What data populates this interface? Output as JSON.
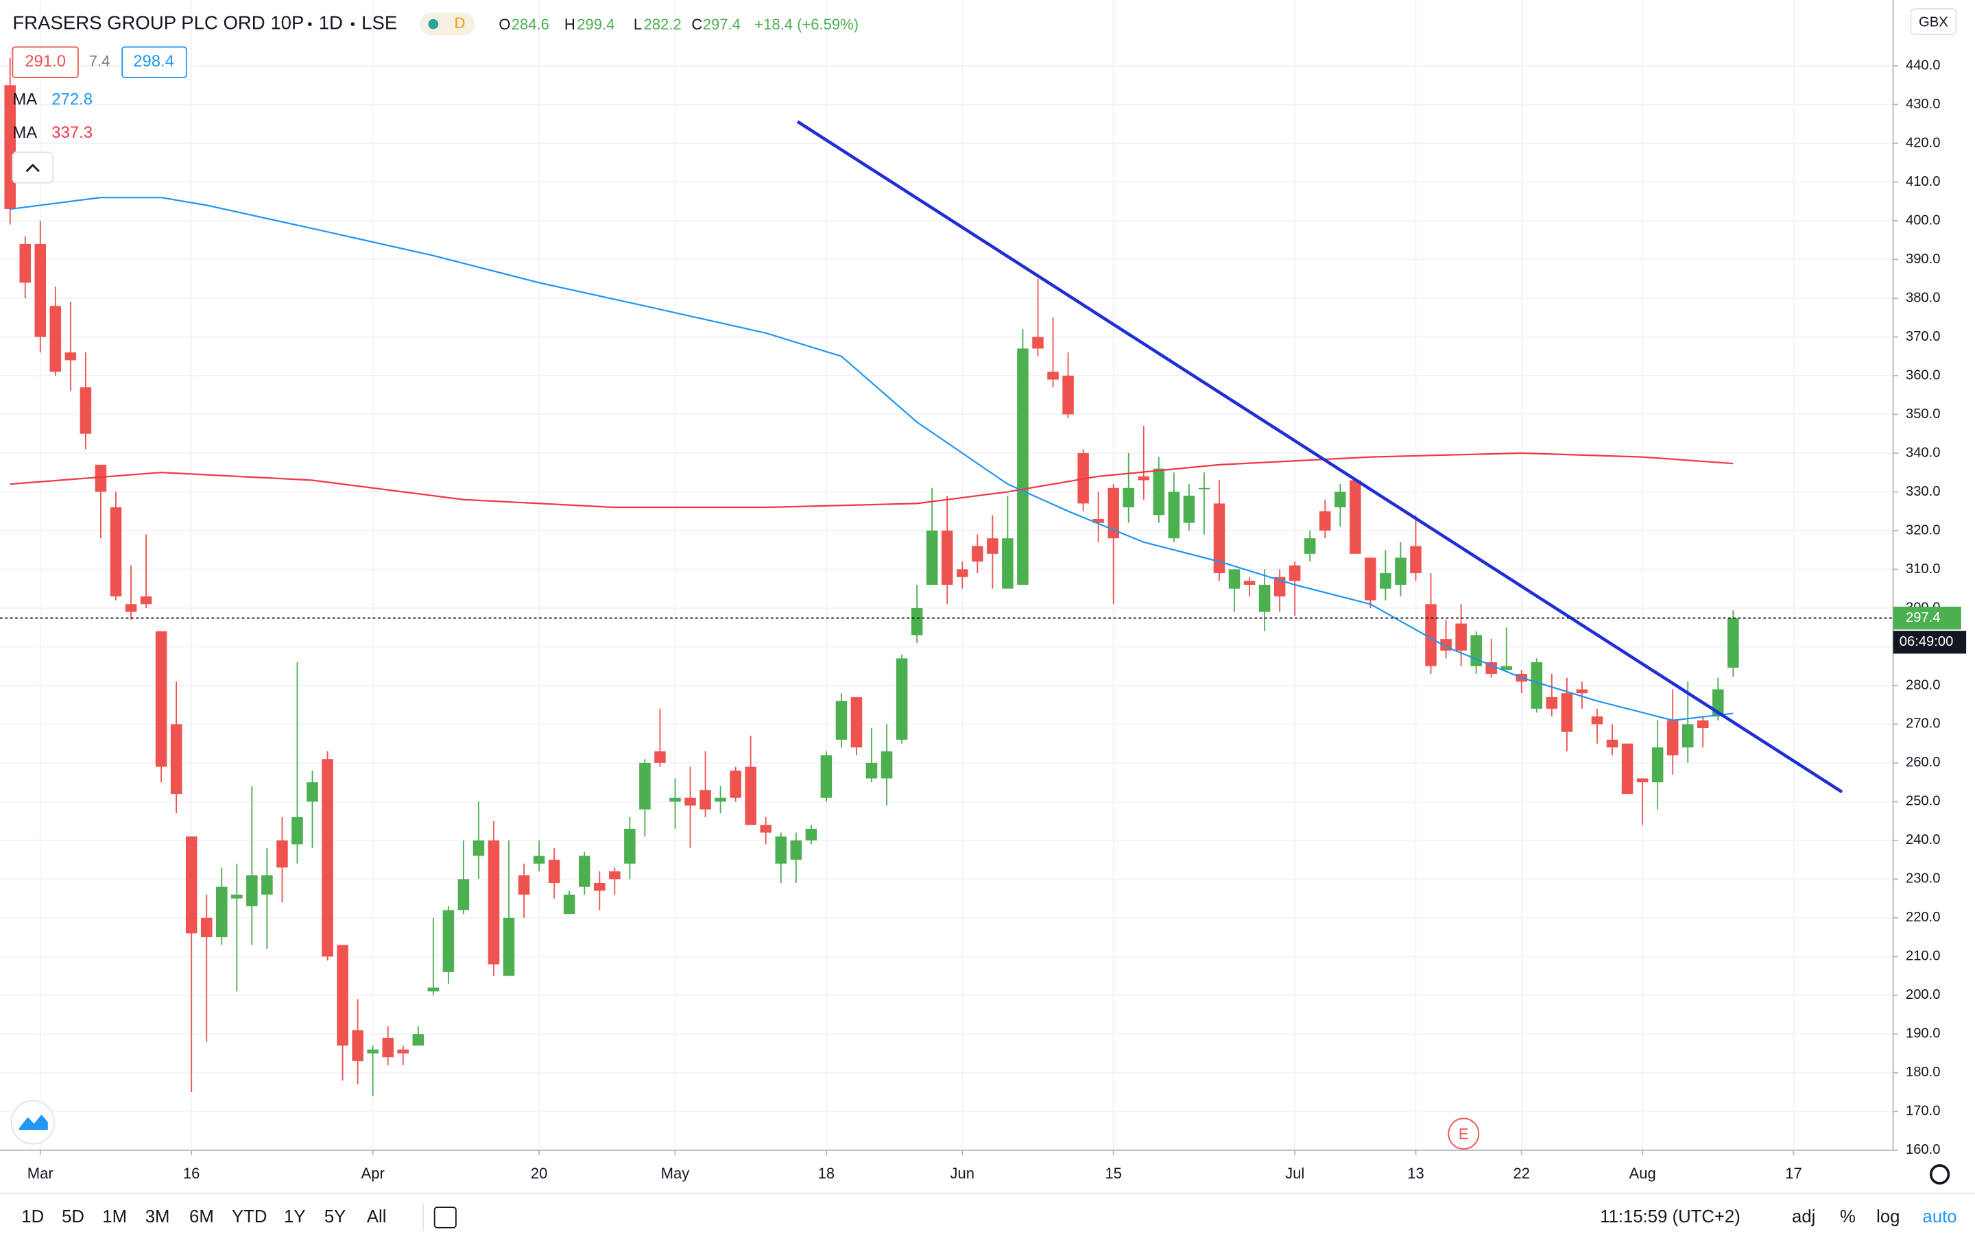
{
  "header": {
    "symbol": "FRASERS GROUP PLC ORD 10P",
    "interval": "1D",
    "exchange": "LSE",
    "badge": "D",
    "ohlc_labels": [
      "O",
      "H",
      "L",
      "C"
    ],
    "change": "+18.4 (+6.59%)"
  },
  "order_panel": {
    "sell": "291.0",
    "spread": "7.4",
    "buy": "298.4"
  },
  "axis_currency": "GBX",
  "countdown": "06:49:00",
  "event_marker": "E",
  "toolbar": {
    "ranges": [
      "1D",
      "5D",
      "1M",
      "3M",
      "6M",
      "YTD",
      "1Y",
      "5Y",
      "All"
    ],
    "time": "11:15:59 (UTC+2)",
    "options": [
      "adj",
      "%",
      "log",
      "auto"
    ]
  },
  "chart_data": {
    "type": "candlestick",
    "up_color": "#4caf50",
    "down_color": "#ef5350",
    "open": [
      435,
      394,
      394,
      378,
      366,
      357,
      337,
      326,
      301,
      303,
      294,
      270,
      241,
      220,
      215,
      225,
      223,
      226,
      240,
      239,
      250,
      261,
      213,
      191,
      185,
      189,
      186,
      187,
      201,
      206,
      222,
      236,
      240,
      205,
      231,
      234,
      235,
      221,
      228,
      229,
      232,
      234,
      248,
      263,
      250,
      251,
      253,
      250,
      258,
      259,
      244,
      234,
      235,
      240,
      251,
      266,
      277,
      256,
      256,
      266,
      293,
      306,
      320,
      310,
      316,
      318,
      305,
      306,
      370,
      361,
      360,
      340,
      323,
      331,
      326,
      334,
      324,
      318,
      322,
      331,
      327,
      305,
      307,
      299,
      308,
      311,
      314,
      325,
      326,
      333,
      313,
      305,
      306,
      316,
      301,
      292,
      296,
      285,
      286,
      284,
      283,
      274,
      277,
      278,
      279,
      272,
      266,
      265,
      256,
      255,
      271,
      264,
      271,
      272,
      284.6
    ],
    "high": [
      442,
      396,
      400,
      383,
      379,
      366,
      337,
      330,
      311,
      319,
      294,
      281,
      241,
      226,
      233,
      234,
      254,
      238,
      246,
      286,
      258,
      263,
      213,
      199,
      187,
      192,
      187,
      192,
      220,
      223,
      240,
      250,
      245,
      240,
      234,
      240,
      238,
      227,
      237,
      232,
      233,
      246,
      261,
      274,
      256,
      259,
      263,
      254,
      259,
      267,
      246,
      242,
      242,
      244,
      263,
      278,
      277,
      269,
      270,
      288,
      306,
      331,
      329,
      312,
      319,
      324,
      329,
      372,
      385,
      375,
      366,
      341,
      330,
      332,
      340,
      347,
      339,
      335,
      332,
      335,
      333,
      310,
      308,
      310,
      310,
      312,
      320,
      328,
      332,
      333,
      313,
      315,
      317,
      324,
      309,
      297,
      301,
      294,
      292,
      295,
      284,
      287,
      283,
      282,
      281,
      274,
      270,
      265,
      256,
      271,
      279,
      281,
      272,
      282,
      299.4
    ],
    "low": [
      399,
      380,
      366,
      360,
      356,
      341,
      318,
      302,
      297,
      300,
      255,
      247,
      175,
      188,
      213,
      201,
      213,
      212,
      224,
      234,
      238,
      209,
      178,
      177,
      174,
      182,
      182,
      187,
      200,
      203,
      221,
      230,
      205,
      205,
      220,
      232,
      225,
      221,
      226,
      222,
      226,
      230,
      241,
      259,
      243,
      238,
      246,
      247,
      250,
      244,
      239,
      229,
      229,
      239,
      250,
      264,
      262,
      255,
      249,
      265,
      291,
      306,
      301,
      305,
      309,
      305,
      305,
      306,
      365,
      357,
      349,
      325,
      317,
      301,
      322,
      328,
      322,
      317,
      320,
      319,
      307,
      299,
      303,
      294,
      299,
      298,
      312,
      318,
      321,
      314,
      300,
      302,
      303,
      307,
      283,
      287,
      285,
      283,
      282,
      284,
      278,
      273,
      272,
      263,
      274,
      265,
      262,
      252,
      244,
      248,
      257,
      260,
      264,
      271,
      282.2
    ],
    "close": [
      403,
      384,
      370,
      361,
      364,
      345,
      330,
      303,
      299,
      301,
      259,
      252,
      216,
      215,
      228,
      226,
      231,
      231,
      233,
      246,
      255,
      210,
      187,
      183,
      186,
      184,
      185,
      190,
      202,
      222,
      230,
      240,
      208,
      220,
      226,
      236,
      229,
      226,
      236,
      227,
      230,
      243,
      260,
      260,
      251,
      249,
      248,
      251,
      251,
      244,
      242,
      241,
      240,
      243,
      262,
      276,
      264,
      260,
      263,
      287,
      300,
      320,
      306,
      308,
      312,
      314,
      318,
      367,
      367,
      359,
      350,
      327,
      322,
      318,
      331,
      333,
      336,
      330,
      329,
      331,
      309,
      310,
      306,
      306,
      303,
      307,
      318,
      320,
      330,
      314,
      302,
      309,
      313,
      309,
      285,
      289,
      289,
      293,
      283,
      285,
      281,
      286,
      274,
      268,
      278,
      270,
      264,
      252,
      255,
      264,
      262,
      270,
      269,
      279,
      297.4
    ],
    "lines": [
      {
        "name": "MA",
        "color": "#2196f3",
        "x": [
          0,
          6,
          10,
          13,
          20,
          28,
          35,
          42,
          50,
          55,
          60,
          66,
          70,
          75,
          80,
          85,
          90,
          95,
          100,
          105,
          110,
          114
        ],
        "values": [
          403,
          406,
          406,
          404,
          398,
          391,
          384,
          378,
          371,
          365,
          348,
          332,
          325,
          317,
          312,
          306,
          301,
          290,
          282,
          276,
          271,
          272.8
        ]
      },
      {
        "name": "MA",
        "color": "#f23645",
        "x": [
          0,
          10,
          20,
          30,
          40,
          50,
          60,
          66,
          72,
          80,
          90,
          100,
          108,
          114
        ],
        "values": [
          332,
          335,
          333,
          328,
          326,
          326,
          327,
          330,
          334,
          337,
          339,
          340,
          339,
          337.3
        ]
      }
    ],
    "trendline": {
      "color": "#1e2fd6",
      "x": [
        52.1,
        121.2
      ],
      "values": [
        425.6,
        252.5
      ]
    },
    "xlim": [
      -0.667,
      124.583
    ],
    "ylim": [
      160,
      457
    ],
    "xticks": [
      {
        "value": 2,
        "label": "Mar"
      },
      {
        "value": 12,
        "label": "16"
      },
      {
        "value": 24,
        "label": "Apr"
      },
      {
        "value": 35,
        "label": "20"
      },
      {
        "value": 44,
        "label": "May"
      },
      {
        "value": 54,
        "label": "18"
      },
      {
        "value": 63,
        "label": "Jun"
      },
      {
        "value": 73,
        "label": "15"
      },
      {
        "value": 85,
        "label": "Jul"
      },
      {
        "value": 93,
        "label": "13"
      },
      {
        "value": 100,
        "label": "22"
      },
      {
        "value": 108,
        "label": "Aug"
      },
      {
        "value": 118,
        "label": "17"
      }
    ],
    "yticks": [
      {
        "value": 160,
        "label": "160.0"
      },
      {
        "value": 170,
        "label": "170.0"
      },
      {
        "value": 180,
        "label": "180.0"
      },
      {
        "value": 190,
        "label": "190.0"
      },
      {
        "value": 200,
        "label": "200.0"
      },
      {
        "value": 210,
        "label": "210.0"
      },
      {
        "value": 220,
        "label": "220.0"
      },
      {
        "value": 230,
        "label": "230.0"
      },
      {
        "value": 240,
        "label": "240.0"
      },
      {
        "value": 250,
        "label": "250.0"
      },
      {
        "value": 260,
        "label": "260.0"
      },
      {
        "value": 270,
        "label": "270.0"
      },
      {
        "value": 280,
        "label": "280.0"
      },
      {
        "value": 290,
        "label": "290.0"
      },
      {
        "value": 300,
        "label": "300.0"
      },
      {
        "value": 310,
        "label": "310.0"
      },
      {
        "value": 320,
        "label": "320.0"
      },
      {
        "value": 330,
        "label": "330.0"
      },
      {
        "value": 340,
        "label": "340.0"
      },
      {
        "value": 350,
        "label": "350.0"
      },
      {
        "value": 360,
        "label": "360.0"
      },
      {
        "value": 370,
        "label": "370.0"
      },
      {
        "value": 380,
        "label": "380.0"
      },
      {
        "value": 390,
        "label": "390.0"
      },
      {
        "value": 400,
        "label": "400.0"
      },
      {
        "value": 410,
        "label": "410.0"
      },
      {
        "value": 420,
        "label": "420.0"
      },
      {
        "value": 430,
        "label": "430.0"
      },
      {
        "value": 440,
        "label": "440.0"
      }
    ],
    "grid": true
  }
}
